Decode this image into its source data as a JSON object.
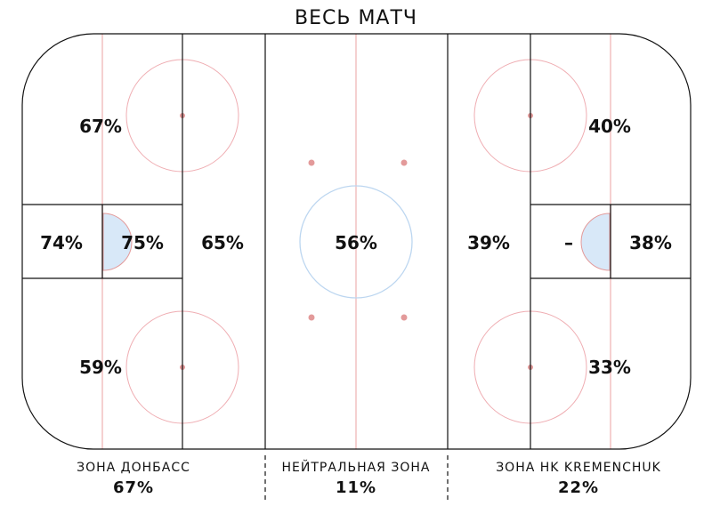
{
  "chart_data": {
    "type": "heatmap",
    "title": "ВЕСЬ МАТЧ",
    "cells": {
      "left_top": "67%",
      "left_goal_outer": "74%",
      "left_goal_inner": "75%",
      "left_slot": "65%",
      "left_bottom": "59%",
      "neutral_center": "56%",
      "right_slot": "39%",
      "right_goal_inner": "–",
      "right_goal_outer": "38%",
      "right_top": "40%",
      "right_bottom": "33%"
    },
    "zones": [
      {
        "label": "ЗОНА ДОНБАСС",
        "value": "67%"
      },
      {
        "label": "НЕЙТРАЛЬНАЯ ЗОНА",
        "value": "11%"
      },
      {
        "label": "ЗОНА HK KREMENCHUK",
        "value": "22%"
      }
    ]
  }
}
